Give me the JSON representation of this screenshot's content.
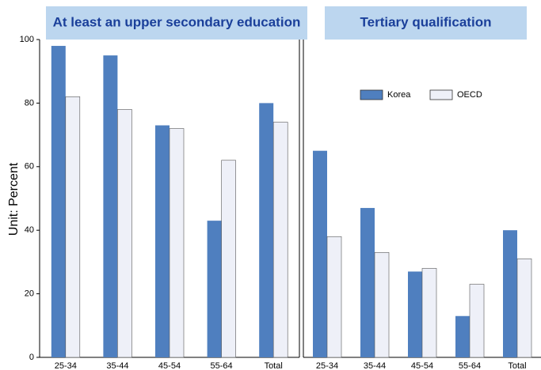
{
  "chart_data": [
    {
      "type": "bar",
      "title": "At least an upper secondary education",
      "y_label": "Unit: Percent",
      "categories": [
        "25-34",
        "35-44",
        "45-54",
        "55-64",
        "Total"
      ],
      "series": [
        {
          "name": "Korea",
          "color": "#4f7fbf",
          "values": [
            98,
            95,
            73,
            43,
            80
          ]
        },
        {
          "name": "OECD",
          "color": "#eef0f8",
          "values": [
            82,
            78,
            72,
            62,
            74
          ]
        }
      ],
      "ylim": [
        0,
        100
      ],
      "yticks": [
        0,
        20,
        40,
        60,
        80,
        100
      ]
    },
    {
      "type": "bar",
      "title": "Tertiary qualification",
      "categories": [
        "25-34",
        "35-44",
        "45-54",
        "55-64",
        "Total"
      ],
      "series": [
        {
          "name": "Korea",
          "color": "#4f7fbf",
          "values": [
            65,
            47,
            27,
            13,
            40
          ]
        },
        {
          "name": "OECD",
          "color": "#eef0f8",
          "values": [
            38,
            33,
            28,
            23,
            31
          ]
        }
      ],
      "ylim": [
        0,
        100
      ],
      "legend": "upper right"
    }
  ]
}
